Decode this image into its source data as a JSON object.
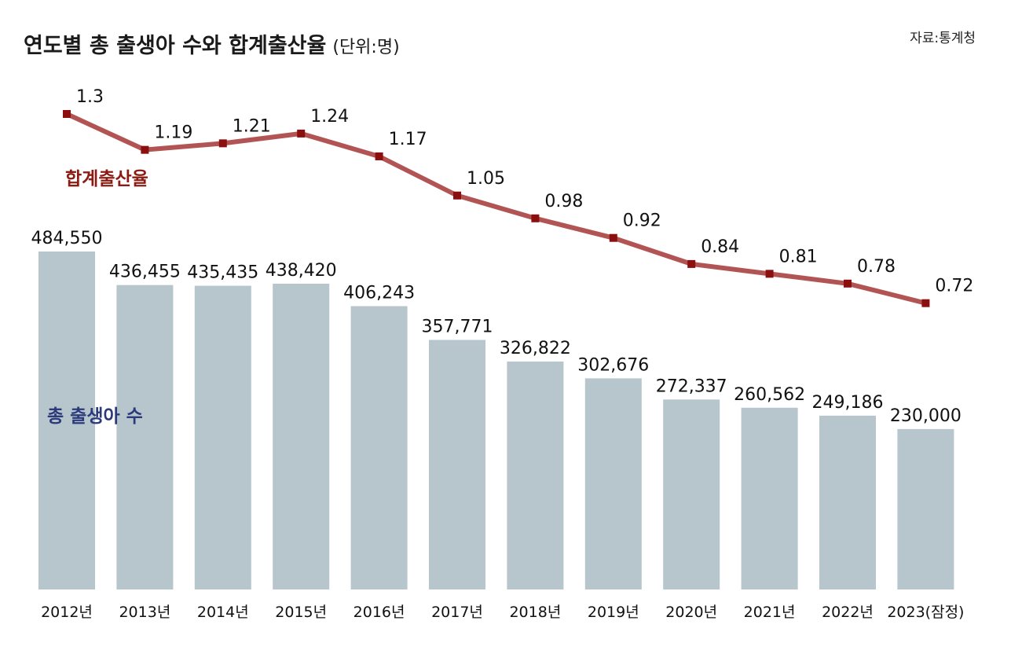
{
  "title": "연도별 총 출생아 수와 합계출산율",
  "unit": "(단위:명)",
  "source": "자료:통계청",
  "chart_data": {
    "type": "bar",
    "categories": [
      "2012년",
      "2013년",
      "2014년",
      "2015년",
      "2016년",
      "2017년",
      "2018년",
      "2019년",
      "2020년",
      "2021년",
      "2022년",
      "2023(잠정)"
    ],
    "series": [
      {
        "name": "총 출생아 수",
        "type": "bar",
        "values": [
          484550,
          436455,
          435435,
          438420,
          406243,
          357771,
          326822,
          302676,
          272337,
          260562,
          249186,
          230000
        ],
        "labels": [
          "484,550",
          "436,455",
          "435,435",
          "438,420",
          "406,243",
          "357,771",
          "326,822",
          "302,676",
          "272,337",
          "260,562",
          "249,186",
          "230,000"
        ]
      },
      {
        "name": "합계출산율",
        "type": "line",
        "values": [
          1.3,
          1.19,
          1.21,
          1.24,
          1.17,
          1.05,
          0.98,
          0.92,
          0.84,
          0.81,
          0.78,
          0.72
        ],
        "labels": [
          "1.3",
          "1.19",
          "1.21",
          "1.24",
          "1.17",
          "1.05",
          "0.98",
          "0.92",
          "0.84",
          "0.81",
          "0.78",
          "0.72"
        ]
      }
    ],
    "colors": {
      "bar": "#b7c5cc",
      "line": "#b35454",
      "marker": "#8b0f0f",
      "bar_label": "#2b3a7a",
      "line_label": "#8b1c14"
    },
    "grid": false,
    "legend": "inline"
  }
}
